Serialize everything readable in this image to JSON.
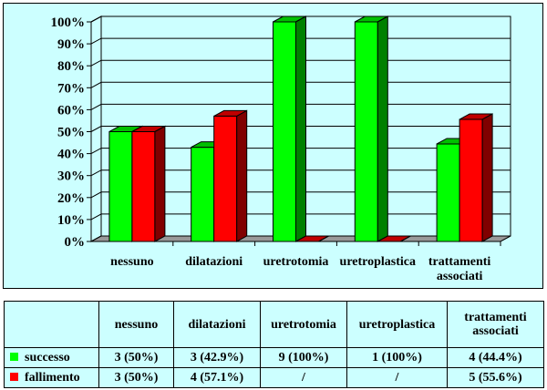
{
  "chart_data": {
    "type": "bar",
    "categories": [
      "nessuno",
      "dilatazioni",
      "uretrotomia",
      "uretroplastica",
      "trattamenti associati"
    ],
    "series": [
      {
        "name": "successo",
        "values": [
          50,
          42.9,
          100,
          100,
          44.4
        ],
        "color": "#00ff00"
      },
      {
        "name": "fallimento",
        "values": [
          50,
          57.1,
          0,
          0,
          55.6
        ],
        "color": "#ff0000"
      }
    ],
    "ylim": [
      0,
      100
    ],
    "yticks": [
      "0%",
      "10%",
      "20%",
      "30%",
      "40%",
      "50%",
      "60%",
      "70%",
      "80%",
      "90%",
      "100%"
    ],
    "grid": true,
    "bar_style": "3d"
  },
  "table": {
    "headers": [
      "nessuno",
      "dilatazioni",
      "uretrotomia",
      "uretroplastica",
      "trattamenti associati"
    ],
    "rows": [
      {
        "label": "successo",
        "color": "#00ff00",
        "cells": [
          "3 (50%)",
          "3 (42.9%)",
          "9 (100%)",
          "1 (100%)",
          "4 (44.4%)"
        ]
      },
      {
        "label": "fallimento",
        "color": "#ff0000",
        "cells": [
          "3 (50%)",
          "4 (57.1%)",
          "/",
          "/",
          "5 (55.6%)"
        ]
      }
    ]
  }
}
